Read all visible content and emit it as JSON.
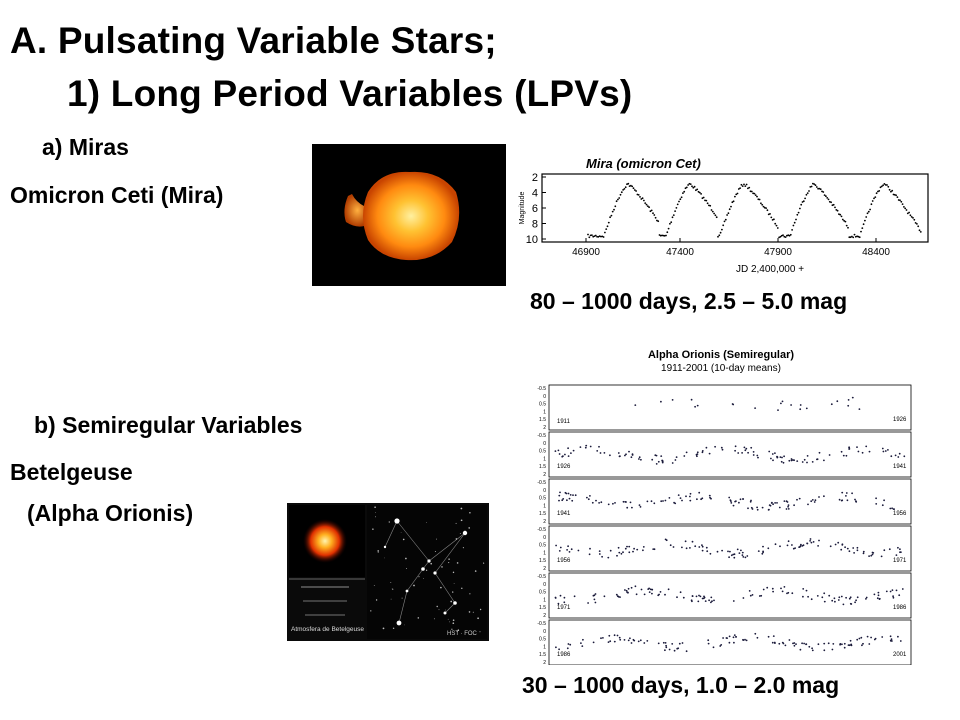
{
  "slide": {
    "title_line1": "A. Pulsating Variable Stars;",
    "title_line2": "1) Long Period Variables (LPVs)",
    "miras": {
      "heading": "a) Miras",
      "star_label": "Omicron Ceti (Mira)",
      "caption": "80 – 1000 days, 2.5 – 5.0 mag",
      "plot": {
        "title": "Mira (omicron Cet)",
        "ylabel": "Magnitude",
        "yticks": [
          "2",
          "4",
          "6",
          "8",
          "10"
        ],
        "xticks": [
          "46900",
          "47400",
          "47900",
          "48400"
        ],
        "xlabel": "JD 2,400,000 +"
      }
    },
    "semiregular": {
      "heading": "b) Semiregular Variables",
      "star_label_line1": "Betelgeuse",
      "star_label_line2": "(Alpha Orionis)",
      "caption": "30 – 1000 days, 1.0 – 2.0 mag",
      "plot": {
        "title": "Alpha Orionis (Semiregular)",
        "subtitle": "1911-2001 (10-day means)",
        "yticks": [
          "-0.5",
          "0",
          "0.5",
          "1",
          "1.5",
          "2"
        ],
        "panels": [
          {
            "start": "1911",
            "end": "1926"
          },
          {
            "start": "1926",
            "end": "1941"
          },
          {
            "start": "1941",
            "end": "1956"
          },
          {
            "start": "1956",
            "end": "1971"
          },
          {
            "start": "1971",
            "end": "1986"
          },
          {
            "start": "1986",
            "end": "2001"
          }
        ]
      },
      "image_caption": "Atmosfera de Betelgeuse",
      "image_label_hst": "HST · FOC"
    }
  }
}
